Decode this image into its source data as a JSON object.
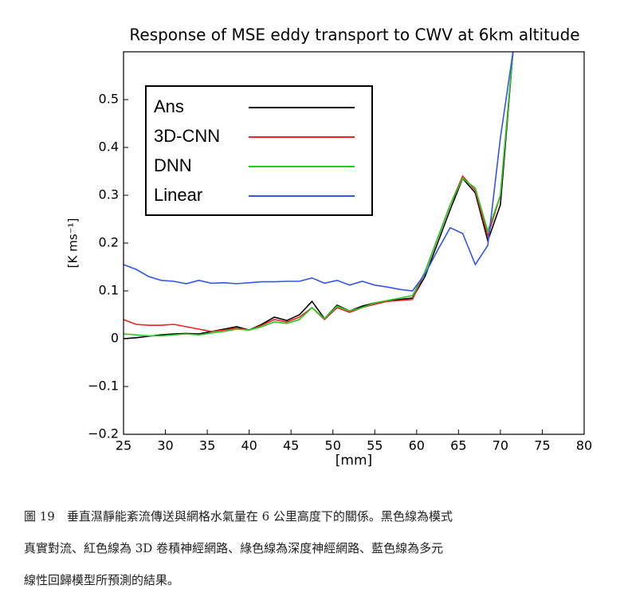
{
  "chart_data": {
    "type": "line",
    "title": "Response of MSE eddy transport to CWV at 6km altitude",
    "xlabel": "[mm]",
    "ylabel": "[K ms⁻¹]",
    "x": [
      25,
      26.5,
      28,
      29.5,
      31,
      32.5,
      34,
      35.5,
      37,
      38.5,
      40,
      41.5,
      43,
      44.5,
      46,
      47.5,
      49,
      50.5,
      52,
      53.5,
      55,
      56.5,
      58,
      59.5,
      61,
      62.5,
      64,
      65.5,
      67,
      68.5,
      70,
      71.5
    ],
    "series": [
      {
        "name": "Ans",
        "color": "#000000",
        "values": [
          0,
          0.002,
          0.005,
          0.008,
          0.01,
          0.011,
          0.01,
          0.015,
          0.02,
          0.025,
          0.018,
          0.03,
          0.045,
          0.038,
          0.05,
          0.078,
          0.042,
          0.07,
          0.058,
          0.068,
          0.075,
          0.078,
          0.082,
          0.085,
          0.13,
          0.2,
          0.27,
          0.335,
          0.305,
          0.205,
          0.28,
          0.6
        ]
      },
      {
        "name": "3D-CNN",
        "color": "#ee2222",
        "values": [
          0.04,
          0.03,
          0.028,
          0.028,
          0.03,
          0.025,
          0.02,
          0.015,
          0.018,
          0.022,
          0.018,
          0.028,
          0.04,
          0.035,
          0.045,
          0.065,
          0.04,
          0.065,
          0.055,
          0.065,
          0.072,
          0.078,
          0.08,
          0.082,
          0.14,
          0.21,
          0.28,
          0.34,
          0.31,
          0.215,
          0.3,
          0.6
        ]
      },
      {
        "name": "DNN",
        "color": "#22cc22",
        "values": [
          0.01,
          0.008,
          0.006,
          0.006,
          0.008,
          0.01,
          0.008,
          0.012,
          0.015,
          0.02,
          0.018,
          0.025,
          0.035,
          0.032,
          0.04,
          0.065,
          0.042,
          0.068,
          0.058,
          0.065,
          0.075,
          0.08,
          0.085,
          0.09,
          0.14,
          0.21,
          0.28,
          0.335,
          0.315,
          0.225,
          0.3,
          0.6
        ]
      },
      {
        "name": "Linear",
        "color": "#3355ee",
        "values": [
          0.155,
          0.145,
          0.13,
          0.122,
          0.12,
          0.115,
          0.122,
          0.116,
          0.117,
          0.115,
          0.117,
          0.119,
          0.119,
          0.12,
          0.12,
          0.127,
          0.116,
          0.122,
          0.112,
          0.12,
          0.112,
          0.108,
          0.103,
          0.1,
          0.135,
          0.185,
          0.232,
          0.22,
          0.155,
          0.195,
          0.42,
          0.6
        ]
      }
    ],
    "xlim": [
      25,
      80
    ],
    "xticks": [
      25,
      30,
      35,
      40,
      45,
      50,
      55,
      60,
      65,
      70,
      75,
      80
    ],
    "ylim": [
      -0.2,
      0.6
    ],
    "yticks": [
      {
        "value": -0.2,
        "label": "−0.2"
      },
      {
        "value": -0.1,
        "label": "−0.1"
      },
      0,
      0.1,
      0.2,
      0.3,
      0.4,
      0.5
    ],
    "legend": "upper-left"
  },
  "caption": [
    "圖 19　垂直濕靜能紊流傳送與網格水氣量在 6 公里高度下的關係。黑色線為模式",
    "真實對流、紅色線為 3D 卷積神經網路、綠色線為深度神經網路、藍色線為多元",
    "線性回歸模型所預測的結果。"
  ]
}
